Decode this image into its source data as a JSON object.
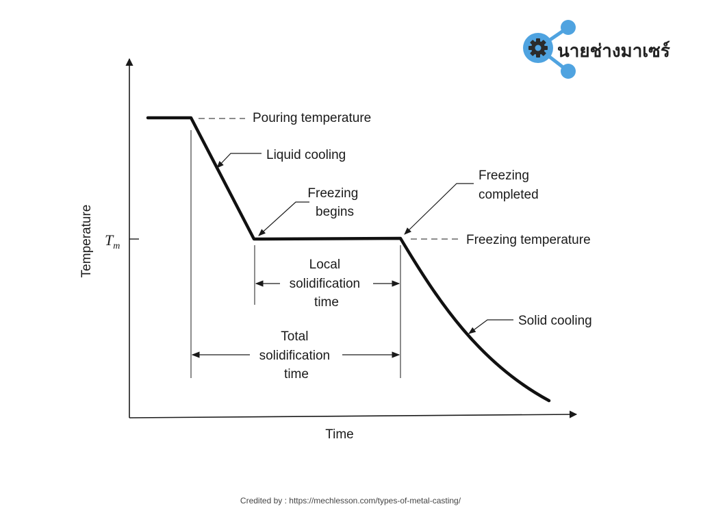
{
  "logo": {
    "text": "นายช่างมาเซร์",
    "accent": "#4fa3e0",
    "gear_icon": "gear-icon"
  },
  "axes": {
    "ylabel": "Temperature",
    "xlabel": "Time",
    "tm_main": "T",
    "tm_sub": "m"
  },
  "labels": {
    "pouring_temperature": "Pouring temperature",
    "liquid_cooling": "Liquid cooling",
    "freezing_begins": [
      "Freezing",
      "begins"
    ],
    "freezing_completed": [
      "Freezing",
      "completed"
    ],
    "freezing_temperature": "Freezing temperature",
    "local_solidification_time": [
      "Local",
      "solidification",
      "time"
    ],
    "total_solidification_time": [
      "Total",
      "solidification",
      "time"
    ],
    "solid_cooling": "Solid cooling"
  },
  "credit": "Credited by : https://mechlesson.com/types-of-metal-casting/"
}
